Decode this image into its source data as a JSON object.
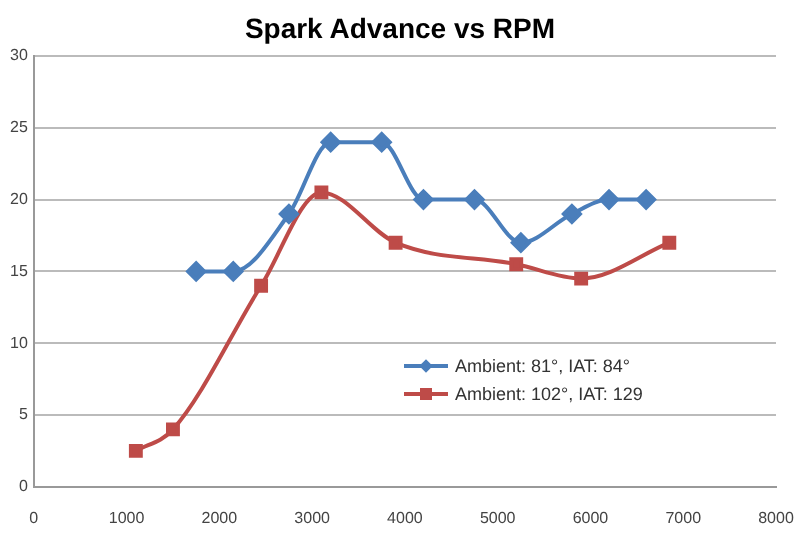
{
  "chart_data": {
    "type": "line",
    "title": "Spark Advance vs RPM",
    "xlim": [
      0,
      8000
    ],
    "xticks": [
      0,
      1000,
      2000,
      3000,
      4000,
      5000,
      6000,
      7000,
      8000
    ],
    "ylim": [
      0,
      30
    ],
    "yticks": [
      0,
      5,
      10,
      15,
      20,
      25,
      30
    ],
    "grid": "y",
    "legend": "center",
    "series": [
      {
        "name": "Ambient: 81°, IAT: 84°",
        "color": "#4a7ebb",
        "marker": "diamond",
        "x": [
          1750,
          2150,
          2750,
          3200,
          3750,
          4200,
          4750,
          5250,
          5800,
          6200,
          6600
        ],
        "values": [
          15,
          15,
          19,
          24,
          24,
          20,
          20,
          17,
          19,
          20,
          20
        ]
      },
      {
        "name": "Ambient: 102°, IAT: 129",
        "color": "#be4b48",
        "marker": "square",
        "x": [
          1100,
          1500,
          2450,
          3100,
          3900,
          5200,
          5900,
          6850
        ],
        "values": [
          2.5,
          4,
          14,
          20.5,
          17,
          15.5,
          14.5,
          17
        ]
      }
    ]
  }
}
